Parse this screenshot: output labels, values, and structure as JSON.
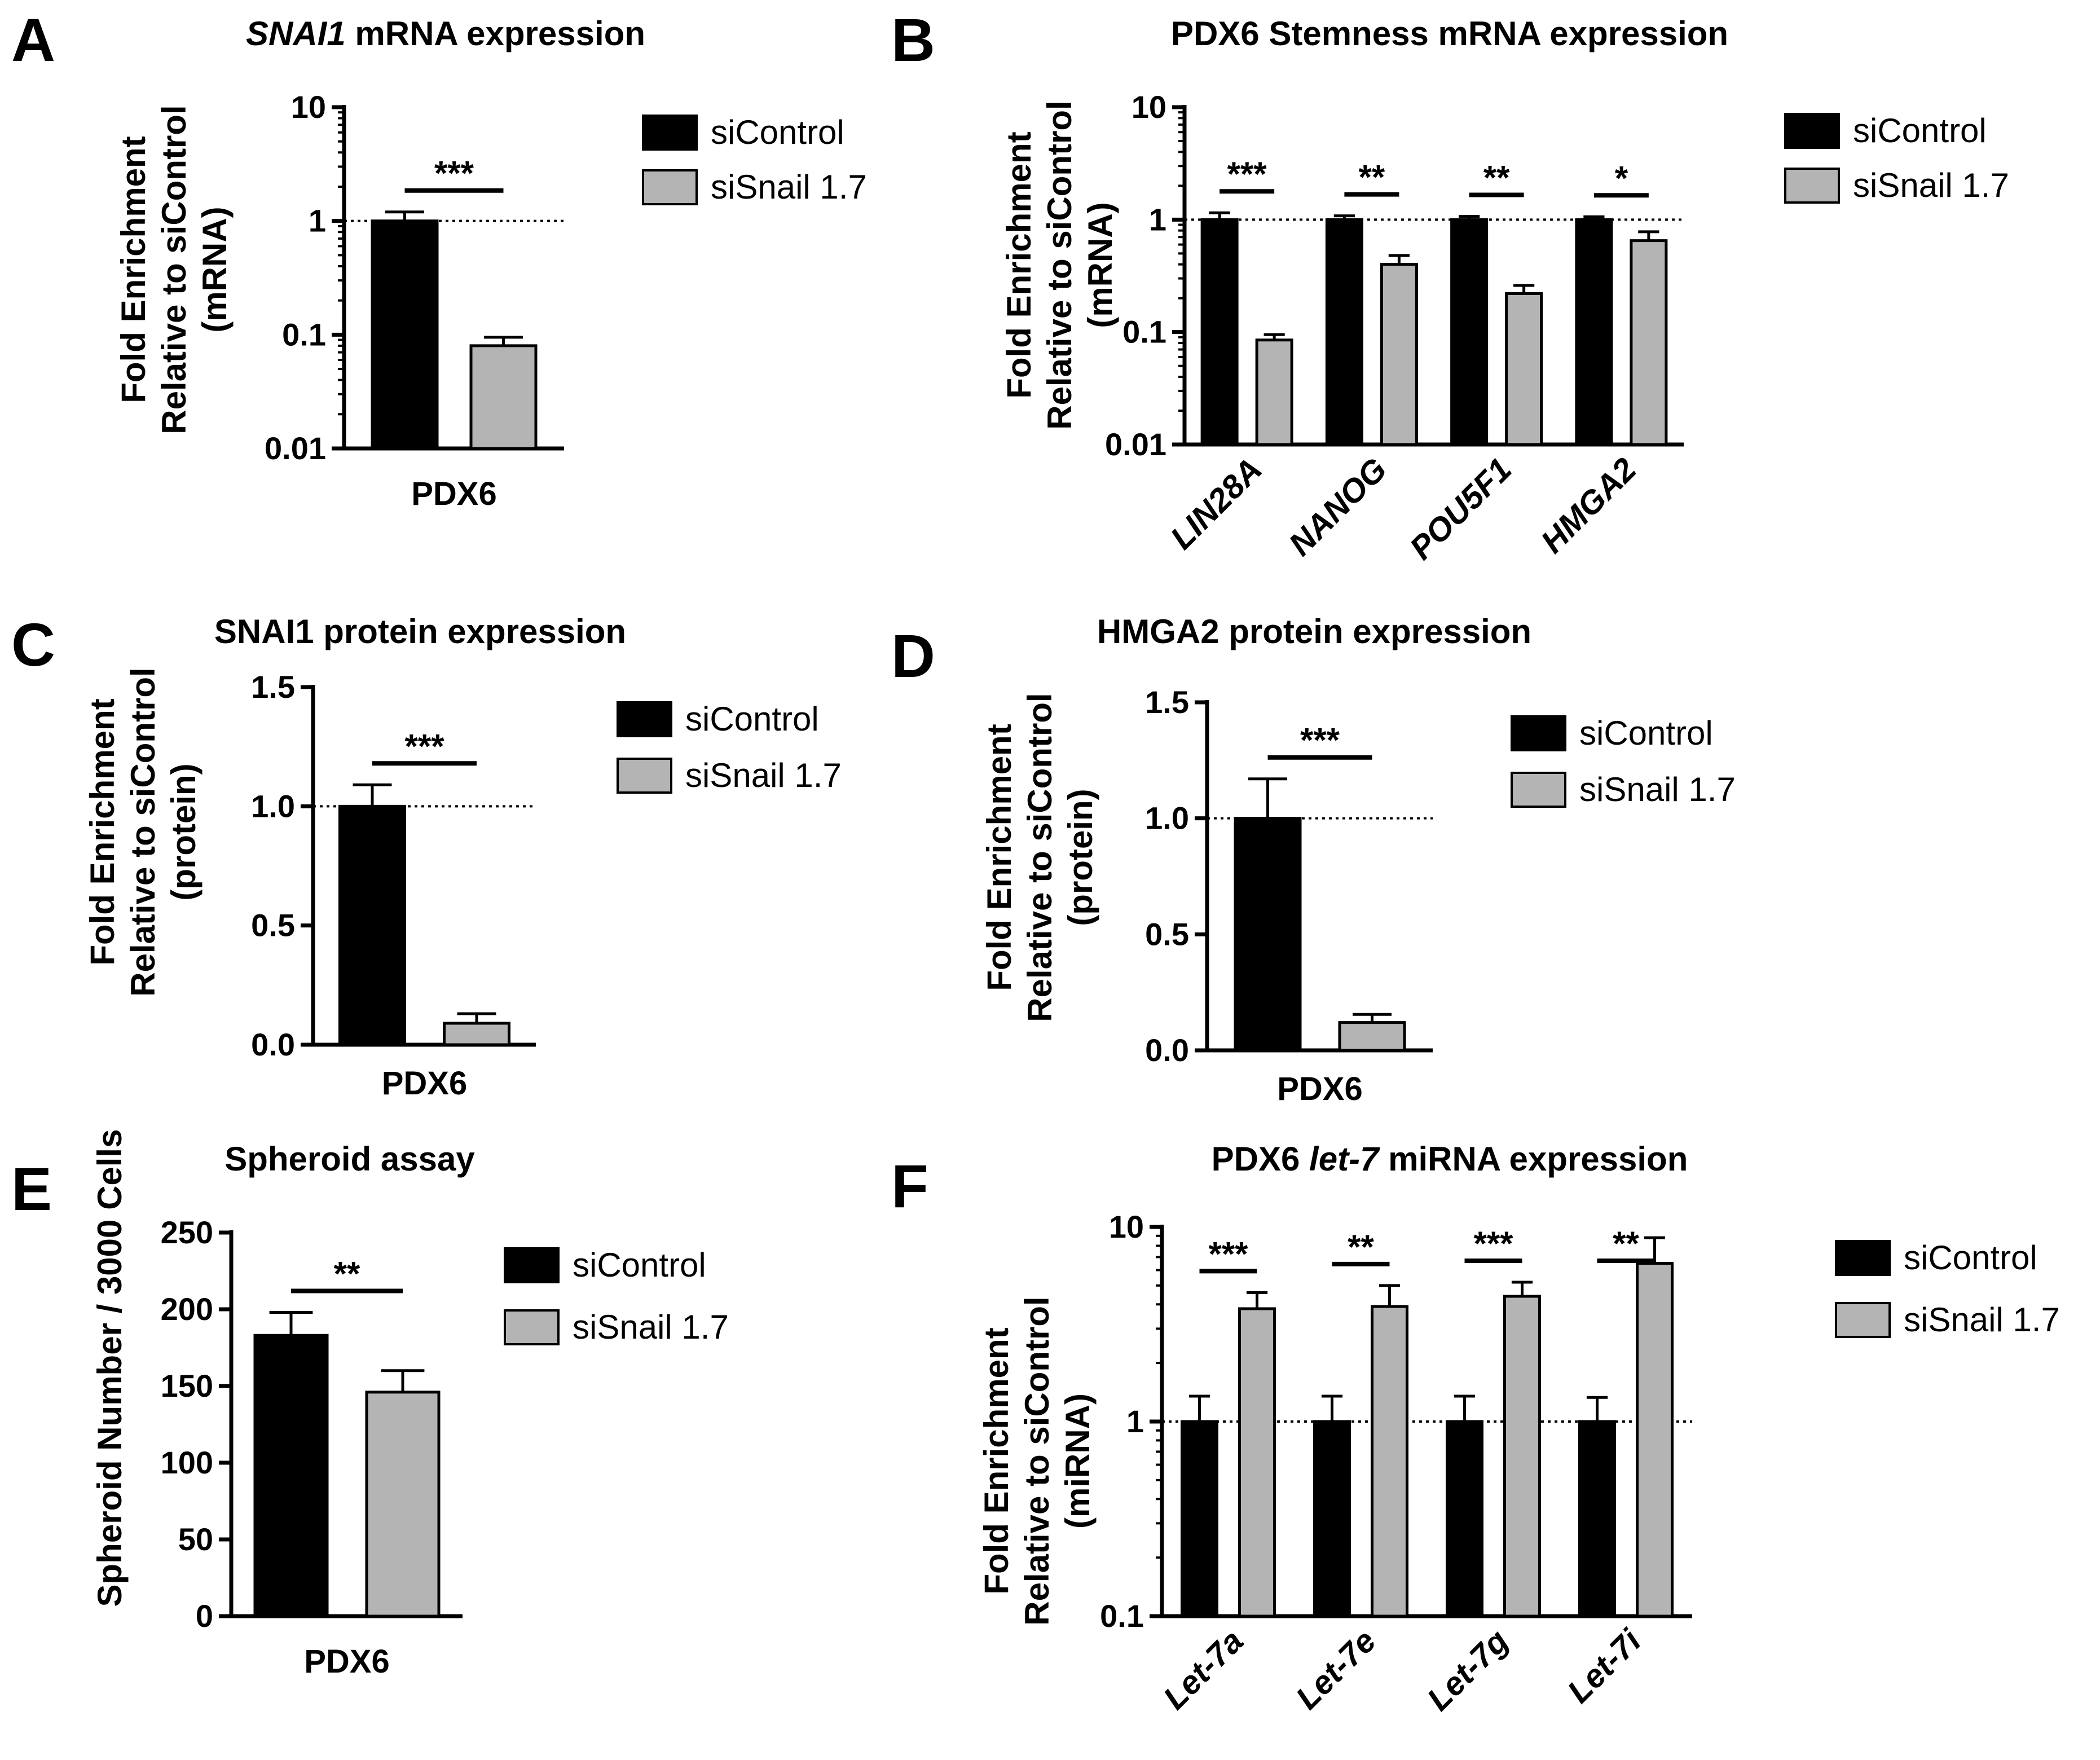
{
  "legend": {
    "series": [
      "siControl",
      "siSnail 1.7"
    ],
    "colors": [
      "#000000",
      "#b4b4b4"
    ]
  },
  "chart_data": [
    {
      "letter": "A",
      "type": "bar",
      "title_italic": "SNAI1",
      "title": " mRNA expression",
      "ylabel": [
        "Fold Enrichment",
        "Relative to siControl",
        "(mRNA)"
      ],
      "scale": "log",
      "ylim": [
        0.01,
        10
      ],
      "ticks": [
        0.01,
        0.1,
        1,
        10
      ],
      "tick_labels": [
        "0.01",
        "0.1",
        "1",
        "10"
      ],
      "categories": [
        "PDX6"
      ],
      "categories_italic": false,
      "series": [
        {
          "name": "siControl",
          "values": [
            1.0
          ],
          "errors": [
            1.2
          ]
        },
        {
          "name": "siSnail 1.7",
          "values": [
            0.08
          ],
          "errors": [
            0.095
          ]
        }
      ],
      "significance": [
        "***"
      ],
      "reference_line": 1
    },
    {
      "letter": "B",
      "type": "bar",
      "title_italic": "",
      "title": "PDX6 Stemness mRNA expression",
      "ylabel": [
        "Fold Enrichment",
        "Relative to siControl",
        "(mRNA)"
      ],
      "scale": "log",
      "ylim": [
        0.01,
        10
      ],
      "ticks": [
        0.01,
        0.1,
        1,
        10
      ],
      "tick_labels": [
        "0.01",
        "0.1",
        "1",
        "10"
      ],
      "categories": [
        "LIN28A",
        "NANOG",
        "POU5F1",
        "HMGA2"
      ],
      "categories_italic": true,
      "series": [
        {
          "name": "siControl",
          "values": [
            1.0,
            1.0,
            1.0,
            1.0
          ],
          "errors": [
            1.15,
            1.08,
            1.07,
            1.06
          ]
        },
        {
          "name": "siSnail 1.7",
          "values": [
            0.085,
            0.4,
            0.22,
            0.65
          ],
          "errors": [
            0.095,
            0.48,
            0.26,
            0.78
          ]
        }
      ],
      "significance": [
        "***",
        "**",
        "**",
        "*"
      ],
      "reference_line": 1
    },
    {
      "letter": "C",
      "type": "bar",
      "title_italic": "",
      "title": "SNAI1 protein expression",
      "ylabel": [
        "Fold Enrichment",
        "Relative to siControl",
        "(protein)"
      ],
      "scale": "linear",
      "ylim": [
        0,
        1.5
      ],
      "ticks": [
        0,
        0.5,
        1.0,
        1.5
      ],
      "tick_labels": [
        "0.0",
        "0.5",
        "1.0",
        "1.5"
      ],
      "categories": [
        "PDX6"
      ],
      "categories_italic": false,
      "series": [
        {
          "name": "siControl",
          "values": [
            1.0
          ],
          "errors": [
            1.09
          ]
        },
        {
          "name": "siSnail 1.7",
          "values": [
            0.09
          ],
          "errors": [
            0.13
          ]
        }
      ],
      "significance": [
        "***"
      ],
      "reference_line": 1
    },
    {
      "letter": "D",
      "type": "bar",
      "title_italic": "",
      "title": "HMGA2 protein expression",
      "ylabel": [
        "Fold Enrichment",
        "Relative to siControl",
        "(protein)"
      ],
      "scale": "linear",
      "ylim": [
        0,
        1.5
      ],
      "ticks": [
        0,
        0.5,
        1.0,
        1.5
      ],
      "tick_labels": [
        "0.0",
        "0.5",
        "1.0",
        "1.5"
      ],
      "categories": [
        "PDX6"
      ],
      "categories_italic": false,
      "series": [
        {
          "name": "siControl",
          "values": [
            1.0
          ],
          "errors": [
            1.17
          ]
        },
        {
          "name": "siSnail 1.7",
          "values": [
            0.12
          ],
          "errors": [
            0.155
          ]
        }
      ],
      "significance": [
        "***"
      ],
      "reference_line": 1
    },
    {
      "letter": "E",
      "type": "bar",
      "title_italic": "",
      "title": "Spheroid assay",
      "ylabel": [
        "Spheroid Number / 3000 Cells"
      ],
      "scale": "linear",
      "ylim": [
        0,
        250
      ],
      "ticks": [
        0,
        50,
        100,
        150,
        200,
        250
      ],
      "tick_labels": [
        "0",
        "50",
        "100",
        "150",
        "200",
        "250"
      ],
      "categories": [
        "PDX6"
      ],
      "categories_italic": false,
      "series": [
        {
          "name": "siControl",
          "values": [
            183
          ],
          "errors": [
            198
          ]
        },
        {
          "name": "siSnail 1.7",
          "values": [
            146
          ],
          "errors": [
            160
          ]
        }
      ],
      "significance": [
        "**"
      ],
      "reference_line": null
    },
    {
      "letter": "F",
      "type": "bar",
      "title_pre": "PDX6 ",
      "title_italic": "let-7",
      "title": " miRNA expression",
      "ylabel": [
        "Fold Enrichment",
        "Relative to siControl",
        "(miRNA)"
      ],
      "scale": "log",
      "ylim": [
        0.1,
        10
      ],
      "ticks": [
        0.1,
        1,
        10
      ],
      "tick_labels": [
        "0.1",
        "1",
        "10"
      ],
      "categories": [
        "Let-7a",
        "Let-7e",
        "Let-7g",
        "Let-7i"
      ],
      "categories_italic": true,
      "series": [
        {
          "name": "siControl",
          "values": [
            1.0,
            1.0,
            1.0,
            1.0
          ],
          "errors": [
            1.35,
            1.35,
            1.35,
            1.33
          ]
        },
        {
          "name": "siSnail 1.7",
          "values": [
            3.8,
            3.9,
            4.4,
            6.5
          ],
          "errors": [
            4.6,
            5.0,
            5.2,
            8.8
          ]
        }
      ],
      "significance": [
        "***",
        "**",
        "***",
        "**"
      ],
      "reference_line": 1
    }
  ]
}
